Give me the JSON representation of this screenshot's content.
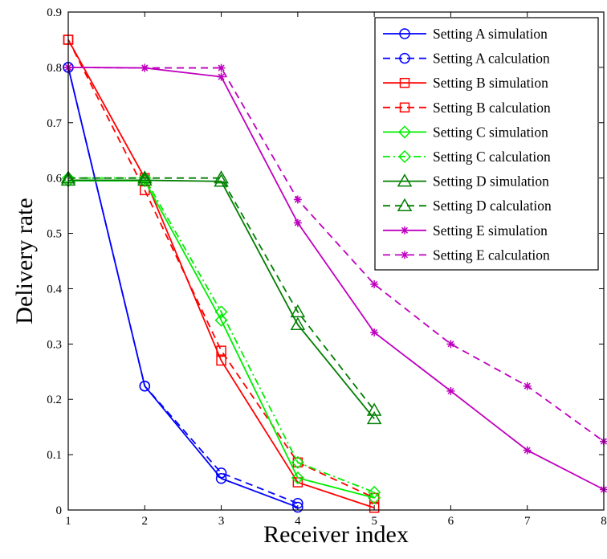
{
  "chart_data": {
    "type": "line",
    "xlabel": "Receiver index",
    "ylabel": "Delivery rate",
    "xlim": [
      1,
      8
    ],
    "ylim": [
      0,
      0.9
    ],
    "x_ticks": [
      "1",
      "2",
      "3",
      "4",
      "5",
      "6",
      "7",
      "8"
    ],
    "y_ticks": [
      "0",
      "0.1",
      "0.2",
      "0.3",
      "0.4",
      "0.5",
      "0.6",
      "0.7",
      "0.8",
      "0.9"
    ],
    "grid": false,
    "legend_position": "top-right",
    "series": [
      {
        "name": "Setting A simulation",
        "color": "#0000ff",
        "dash": "solid",
        "marker": "circle",
        "points": [
          [
            1,
            0.8
          ],
          [
            2,
            0.224
          ],
          [
            3,
            0.057
          ],
          [
            4,
            0.005
          ]
        ]
      },
      {
        "name": "Setting A calculation",
        "color": "#0000ff",
        "dash": "dashed",
        "marker": "circle",
        "points": [
          [
            1,
            0.8
          ],
          [
            2,
            0.224
          ],
          [
            3,
            0.067
          ],
          [
            4,
            0.012
          ]
        ]
      },
      {
        "name": "Setting B simulation",
        "color": "#ff0000",
        "dash": "solid",
        "marker": "square",
        "points": [
          [
            1,
            0.85
          ],
          [
            2,
            0.6
          ],
          [
            3,
            0.27
          ],
          [
            4,
            0.05
          ],
          [
            5,
            0.004
          ]
        ]
      },
      {
        "name": "Setting B calculation",
        "color": "#ff0000",
        "dash": "dashed",
        "marker": "square",
        "points": [
          [
            1,
            0.85
          ],
          [
            2,
            0.578
          ],
          [
            3,
            0.288
          ],
          [
            4,
            0.086
          ],
          [
            5,
            0.022
          ]
        ]
      },
      {
        "name": "Setting C simulation",
        "color": "#00ee00",
        "dash": "solid",
        "marker": "diamond",
        "points": [
          [
            1,
            0.595
          ],
          [
            2,
            0.595
          ],
          [
            3,
            0.343
          ],
          [
            4,
            0.058
          ],
          [
            5,
            0.022
          ]
        ]
      },
      {
        "name": "Setting C calculation",
        "color": "#00ee00",
        "dash": "dashdot",
        "marker": "diamond",
        "points": [
          [
            1,
            0.6
          ],
          [
            2,
            0.6
          ],
          [
            3,
            0.358
          ],
          [
            4,
            0.086
          ],
          [
            5,
            0.032
          ]
        ]
      },
      {
        "name": "Setting D simulation",
        "color": "#007f00",
        "dash": "solid",
        "marker": "triangle",
        "points": [
          [
            1,
            0.596
          ],
          [
            2,
            0.596
          ],
          [
            3,
            0.594
          ],
          [
            4,
            0.335
          ],
          [
            5,
            0.165
          ]
        ]
      },
      {
        "name": "Setting D calculation",
        "color": "#007f00",
        "dash": "dashed",
        "marker": "triangle",
        "points": [
          [
            1,
            0.6
          ],
          [
            2,
            0.6
          ],
          [
            3,
            0.6
          ],
          [
            4,
            0.358
          ],
          [
            5,
            0.18
          ]
        ]
      },
      {
        "name": "Setting E simulation",
        "color": "#bf00bf",
        "dash": "solid",
        "marker": "asterisk",
        "points": [
          [
            1,
            0.8
          ],
          [
            2,
            0.799
          ],
          [
            3,
            0.783
          ],
          [
            4,
            0.519
          ],
          [
            5,
            0.321
          ],
          [
            6,
            0.215
          ],
          [
            7,
            0.108
          ],
          [
            8,
            0.037
          ]
        ]
      },
      {
        "name": "Setting E calculation",
        "color": "#bf00bf",
        "dash": "dashed",
        "marker": "asterisk",
        "points": [
          [
            1,
            0.8
          ],
          [
            2,
            0.799
          ],
          [
            3,
            0.799
          ],
          [
            4,
            0.561
          ],
          [
            5,
            0.408
          ],
          [
            6,
            0.3
          ],
          [
            7,
            0.224
          ],
          [
            8,
            0.124
          ]
        ]
      }
    ]
  }
}
